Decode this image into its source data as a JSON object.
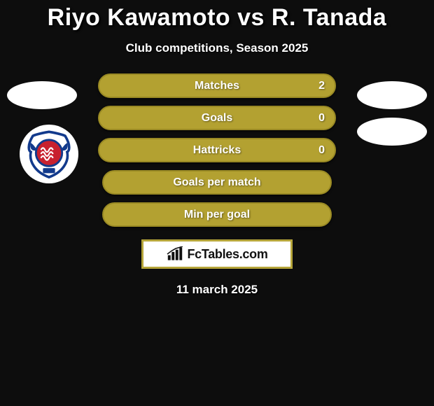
{
  "title": "Riyo Kawamoto vs R. Tanada",
  "subtitle": "Club competitions, Season 2025",
  "date": "11 march 2025",
  "brand": "FcTables.com",
  "colors": {
    "bar_olive": "#b3a131",
    "bar_olive_border": "#9a8a24",
    "accent": "#419fe0"
  },
  "badge": {
    "outer": "#123a8c",
    "inner": "#c8212f",
    "wave": "#ffffff"
  },
  "stats": [
    {
      "label": "Matches",
      "value": "2",
      "has_value": true,
      "short": false
    },
    {
      "label": "Goals",
      "value": "0",
      "has_value": true,
      "short": false
    },
    {
      "label": "Hattricks",
      "value": "0",
      "has_value": true,
      "short": false
    },
    {
      "label": "Goals per match",
      "value": "",
      "has_value": false,
      "short": true
    },
    {
      "label": "Min per goal",
      "value": "",
      "has_value": false,
      "short": true
    }
  ]
}
